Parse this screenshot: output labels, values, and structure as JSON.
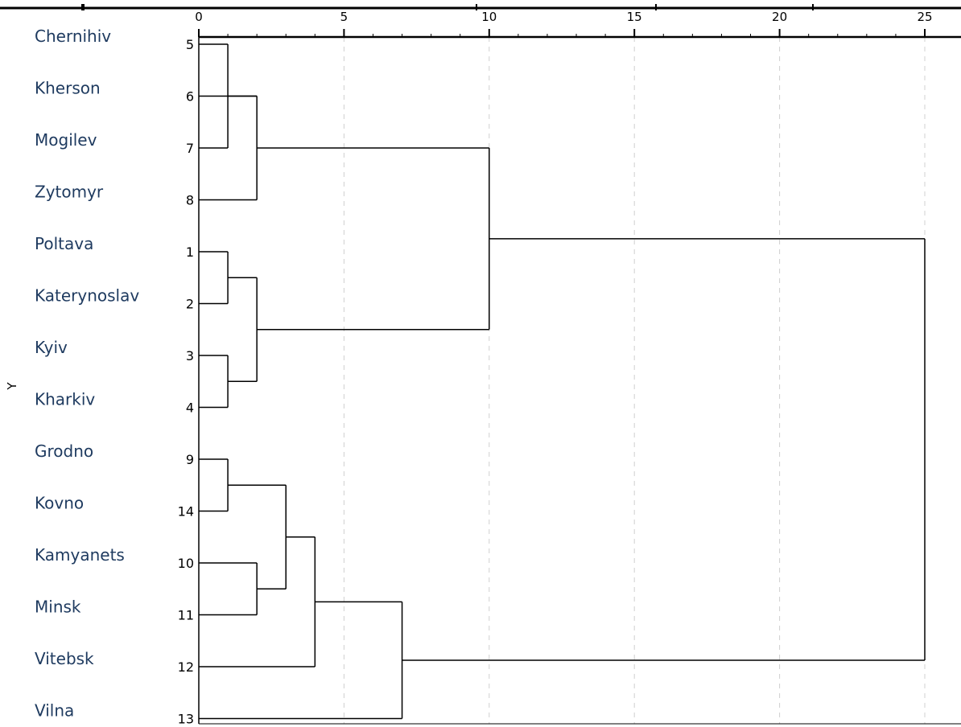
{
  "chart_data": {
    "type": "dendrogram",
    "x_axis": {
      "range": [
        0,
        25
      ],
      "ticks": [
        "0",
        "5",
        "10",
        "15",
        "20",
        "25"
      ],
      "grid": true
    },
    "y_axis_label": "Y",
    "leaves": [
      {
        "name": "Chernihiv",
        "case": "5"
      },
      {
        "name": "Kherson",
        "case": "6"
      },
      {
        "name": "Mogilev",
        "case": "7"
      },
      {
        "name": "Zytomyr",
        "case": "8"
      },
      {
        "name": "Poltava",
        "case": "1"
      },
      {
        "name": "Katerynoslav",
        "case": "2"
      },
      {
        "name": "Kyiv",
        "case": "3"
      },
      {
        "name": "Kharkiv",
        "case": "4"
      },
      {
        "name": "Grodno",
        "case": "9"
      },
      {
        "name": "Kovno",
        "case": "14"
      },
      {
        "name": "Kamyanets",
        "case": "10"
      },
      {
        "name": "Minsk",
        "case": "11"
      },
      {
        "name": "Vitebsk",
        "case": "12"
      },
      {
        "name": "Vilna",
        "case": "13"
      }
    ],
    "merges": [
      {
        "children": [
          "L0",
          "L2"
        ],
        "height": 1
      },
      {
        "children": [
          "M0",
          "L1"
        ],
        "height": 2
      },
      {
        "children": [
          "M1",
          "L3"
        ],
        "height": 2
      },
      {
        "children": [
          "L4",
          "L5"
        ],
        "height": 1
      },
      {
        "children": [
          "L6",
          "L7"
        ],
        "height": 1
      },
      {
        "children": [
          "M3",
          "M4"
        ],
        "height": 2
      },
      {
        "children": [
          "M2",
          "M5"
        ],
        "height": 10
      },
      {
        "children": [
          "L8",
          "L9"
        ],
        "height": 1
      },
      {
        "children": [
          "L10",
          "L11"
        ],
        "height": 2
      },
      {
        "children": [
          "M7",
          "M8"
        ],
        "height": 3
      },
      {
        "children": [
          "M9",
          "L12"
        ],
        "height": 4
      },
      {
        "children": [
          "M10",
          "L13"
        ],
        "height": 7
      },
      {
        "children": [
          "M6",
          "M11"
        ],
        "height": 25
      }
    ]
  },
  "colors": {
    "line": "#000000",
    "grid": "#d0d0d0",
    "region_text": "#1e3a5f"
  }
}
